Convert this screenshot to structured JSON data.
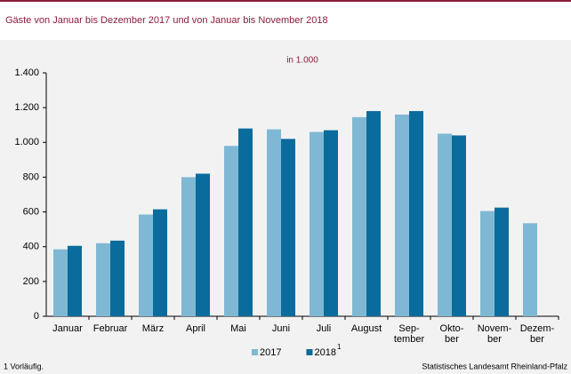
{
  "chart_data": {
    "type": "bar",
    "title": "Gäste von Januar bis Dezember 2017 und von Januar bis November 2018",
    "subtitle": "in 1.000",
    "categories": [
      "Januar",
      "Februar",
      "März",
      "April",
      "Mai",
      "Juni",
      "Juli",
      "August",
      "Sep-\ntember",
      "Okto-\nber",
      "Novem-\nber",
      "Dezem-\nber"
    ],
    "series": [
      {
        "name": "2017",
        "color": "#7fb8d4",
        "values": [
          385,
          420,
          585,
          800,
          980,
          1075,
          1060,
          1145,
          1160,
          1050,
          605,
          535
        ]
      },
      {
        "name": "2018",
        "color": "#0a6c9c",
        "values": [
          405,
          435,
          615,
          820,
          1080,
          1020,
          1070,
          1180,
          1180,
          1040,
          625,
          null
        ]
      }
    ],
    "legend_footnote_mark": "1",
    "ylim": [
      0,
      1400
    ],
    "yticks": [
      0,
      200,
      400,
      600,
      800,
      {
        "value": 1000,
        "label": "1.000"
      },
      {
        "value": 1200,
        "label": "1.200"
      },
      {
        "value": 1400,
        "label": "1.400"
      }
    ],
    "grid": false,
    "footnote": "1 Vorläufig.",
    "source": "Statistisches Landesamt Rheinland-Pfalz"
  }
}
